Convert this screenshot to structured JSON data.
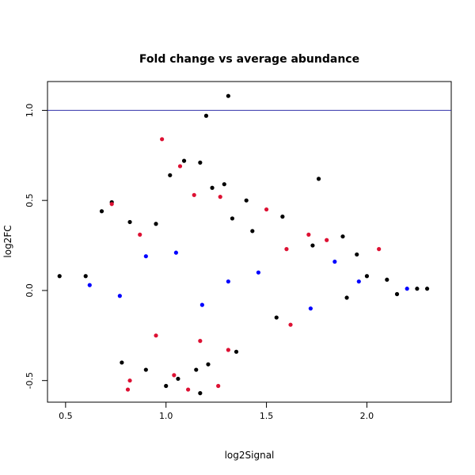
{
  "chart_data": {
    "type": "scatter",
    "title": "Fold change vs average abundance",
    "xlabel": "log2Signal",
    "ylabel": "log2FC",
    "xlim": [
      0.41,
      2.42
    ],
    "ylim": [
      -0.62,
      1.16
    ],
    "xticks": [
      0.5,
      1.0,
      1.5,
      2.0
    ],
    "xtick_labels": [
      "0.5",
      "1.0",
      "1.5",
      "2.0"
    ],
    "yticks": [
      -0.5,
      0.0,
      0.5,
      1.0
    ],
    "ytick_labels": [
      "-0.5",
      "0.0",
      "0.5",
      "1.0"
    ],
    "reference_line": {
      "y": 1.0,
      "color": "#3333aa"
    },
    "grid": false,
    "legend": "none",
    "series": [
      {
        "color": "#000000",
        "values": [
          [
            1.31,
            1.08
          ],
          [
            1.2,
            0.97
          ],
          [
            1.76,
            0.62
          ],
          [
            1.09,
            0.72
          ],
          [
            1.17,
            0.71
          ],
          [
            1.02,
            0.64
          ],
          [
            0.68,
            0.44
          ],
          [
            0.73,
            0.49
          ],
          [
            1.23,
            0.57
          ],
          [
            1.29,
            0.59
          ],
          [
            1.4,
            0.5
          ],
          [
            1.58,
            0.41
          ],
          [
            1.88,
            0.3
          ],
          [
            1.95,
            0.2
          ],
          [
            2.0,
            0.08
          ],
          [
            2.1,
            0.06
          ],
          [
            2.25,
            0.01
          ],
          [
            2.3,
            0.01
          ],
          [
            0.47,
            0.08
          ],
          [
            0.6,
            0.08
          ],
          [
            0.82,
            0.38
          ],
          [
            0.95,
            0.37
          ],
          [
            1.33,
            0.4
          ],
          [
            1.43,
            0.33
          ],
          [
            1.73,
            0.25
          ],
          [
            1.9,
            -0.04
          ],
          [
            2.15,
            -0.02
          ],
          [
            1.0,
            -0.53
          ],
          [
            1.06,
            -0.49
          ],
          [
            1.17,
            -0.57
          ],
          [
            1.21,
            -0.41
          ],
          [
            1.15,
            -0.44
          ],
          [
            0.78,
            -0.4
          ],
          [
            0.9,
            -0.44
          ],
          [
            1.35,
            -0.34
          ],
          [
            1.55,
            -0.15
          ]
        ]
      },
      {
        "color": "#0000ff",
        "values": [
          [
            0.62,
            0.03
          ],
          [
            0.77,
            -0.03
          ],
          [
            0.9,
            0.19
          ],
          [
            1.05,
            0.21
          ],
          [
            1.18,
            -0.08
          ],
          [
            1.31,
            0.05
          ],
          [
            1.46,
            0.1
          ],
          [
            1.72,
            -0.1
          ],
          [
            1.96,
            0.05
          ],
          [
            2.2,
            0.01
          ],
          [
            1.84,
            0.16
          ]
        ]
      },
      {
        "color": "#dd1133",
        "values": [
          [
            0.98,
            0.84
          ],
          [
            1.07,
            0.69
          ],
          [
            1.14,
            0.53
          ],
          [
            1.27,
            0.52
          ],
          [
            1.5,
            0.45
          ],
          [
            0.73,
            0.48
          ],
          [
            0.87,
            0.31
          ],
          [
            1.6,
            0.23
          ],
          [
            1.71,
            0.31
          ],
          [
            1.8,
            0.28
          ],
          [
            2.06,
            0.23
          ],
          [
            0.81,
            -0.55
          ],
          [
            0.82,
            -0.5
          ],
          [
            1.04,
            -0.47
          ],
          [
            1.11,
            -0.55
          ],
          [
            1.26,
            -0.53
          ],
          [
            1.17,
            -0.28
          ],
          [
            0.95,
            -0.25
          ],
          [
            1.31,
            -0.33
          ],
          [
            1.62,
            -0.19
          ]
        ]
      }
    ]
  }
}
